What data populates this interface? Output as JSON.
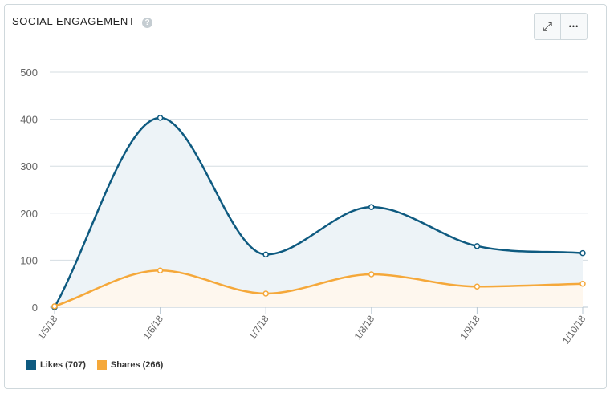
{
  "header": {
    "title": "SOCIAL ENGAGEMENT",
    "help_icon": "question-circle-icon",
    "expand_icon": "expand-arrows-icon",
    "more_icon": "more-horizontal-icon",
    "help_glyph": "?",
    "more_glyph": "•••",
    "expand_glyph": "⤢"
  },
  "chart_data": {
    "type": "area",
    "categories": [
      "1/5/18",
      "1/6/18",
      "1/7/18",
      "1/8/18",
      "1/9/18",
      "1/10/18"
    ],
    "series": [
      {
        "name": "Likes (707)",
        "values": [
          0,
          403,
          112,
          213,
          130,
          115
        ],
        "color": "#0e5a80",
        "fill": "#edf3f7"
      },
      {
        "name": "Shares (266)",
        "values": [
          2,
          78,
          29,
          70,
          44,
          50
        ],
        "color": "#f5a83a",
        "fill": "#fef7ee"
      }
    ],
    "ylim": [
      0,
      500
    ],
    "yticks": [
      "0",
      "100",
      "200",
      "300",
      "400",
      "500"
    ],
    "grid": true,
    "smooth": true,
    "legend_placement": "bottom-left"
  }
}
